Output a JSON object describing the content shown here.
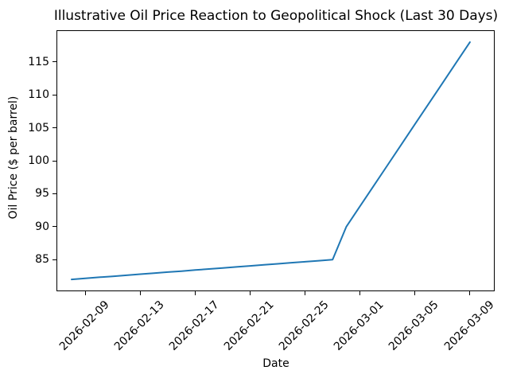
{
  "chart_data": {
    "type": "line",
    "title": "Illustrative Oil Price Reaction to Geopolitical Shock (Last 30 Days)",
    "xlabel": "Date",
    "ylabel": "Oil Price ($ per barrel)",
    "grid": false,
    "legend": "none",
    "line_color": "#1f77b4",
    "axis_color": "#000000",
    "x_start_date": "2026-02-08",
    "xlim_days": [
      -1.1,
      30.8
    ],
    "ylim": [
      80.2,
      119.8
    ],
    "y_ticks": [
      85,
      90,
      95,
      100,
      105,
      110,
      115
    ],
    "x_ticks": [
      "2026-02-09",
      "2026-02-13",
      "2026-02-17",
      "2026-02-21",
      "2026-02-25",
      "2026-03-01",
      "2026-03-05",
      "2026-03-09"
    ],
    "series": [
      {
        "name": "Oil Price",
        "color": "#1f77b4",
        "points": [
          [
            "2026-02-08",
            82.0
          ],
          [
            "2026-02-09",
            82.16
          ],
          [
            "2026-02-10",
            82.32
          ],
          [
            "2026-02-11",
            82.47
          ],
          [
            "2026-02-12",
            82.63
          ],
          [
            "2026-02-13",
            82.79
          ],
          [
            "2026-02-14",
            82.95
          ],
          [
            "2026-02-15",
            83.11
          ],
          [
            "2026-02-16",
            83.26
          ],
          [
            "2026-02-17",
            83.42
          ],
          [
            "2026-02-18",
            83.58
          ],
          [
            "2026-02-19",
            83.74
          ],
          [
            "2026-02-20",
            83.89
          ],
          [
            "2026-02-21",
            84.05
          ],
          [
            "2026-02-22",
            84.21
          ],
          [
            "2026-02-23",
            84.37
          ],
          [
            "2026-02-24",
            84.53
          ],
          [
            "2026-02-25",
            84.68
          ],
          [
            "2026-02-26",
            84.84
          ],
          [
            "2026-02-27",
            85.0
          ],
          [
            "2026-02-28",
            90.0
          ],
          [
            "2026-03-01",
            93.11
          ],
          [
            "2026-03-02",
            96.22
          ],
          [
            "2026-03-03",
            99.33
          ],
          [
            "2026-03-04",
            102.44
          ],
          [
            "2026-03-05",
            105.56
          ],
          [
            "2026-03-06",
            108.67
          ],
          [
            "2026-03-07",
            111.78
          ],
          [
            "2026-03-08",
            114.89
          ],
          [
            "2026-03-09",
            118.0
          ]
        ]
      }
    ]
  }
}
